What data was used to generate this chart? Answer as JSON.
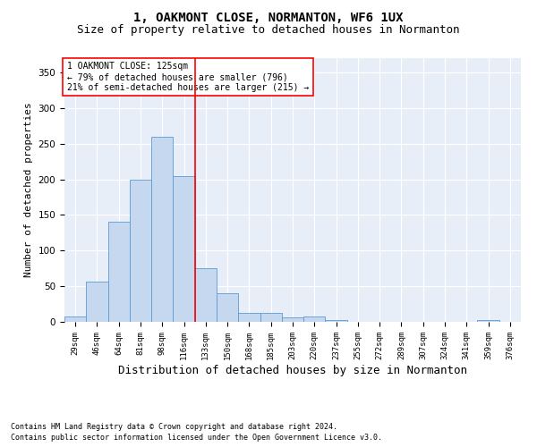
{
  "title": "1, OAKMONT CLOSE, NORMANTON, WF6 1UX",
  "subtitle": "Size of property relative to detached houses in Normanton",
  "xlabel": "Distribution of detached houses by size in Normanton",
  "ylabel": "Number of detached properties",
  "bar_labels": [
    "29sqm",
    "46sqm",
    "64sqm",
    "81sqm",
    "98sqm",
    "116sqm",
    "133sqm",
    "150sqm",
    "168sqm",
    "185sqm",
    "203sqm",
    "220sqm",
    "237sqm",
    "255sqm",
    "272sqm",
    "289sqm",
    "307sqm",
    "324sqm",
    "341sqm",
    "359sqm",
    "376sqm"
  ],
  "bar_values": [
    8,
    57,
    141,
    199,
    259,
    204,
    75,
    40,
    12,
    13,
    6,
    7,
    3,
    0,
    0,
    0,
    0,
    0,
    0,
    3,
    0
  ],
  "bar_color": "#c5d8f0",
  "bar_edge_color": "#5b9bd5",
  "vline_x": 5.5,
  "vline_color": "red",
  "annotation_title": "1 OAKMONT CLOSE: 125sqm",
  "annotation_line2": "← 79% of detached houses are smaller (796)",
  "annotation_line3": "21% of semi-detached houses are larger (215) →",
  "annotation_box_color": "white",
  "annotation_box_edge_color": "red",
  "ylim": [
    0,
    370
  ],
  "yticks": [
    0,
    50,
    100,
    150,
    200,
    250,
    300,
    350
  ],
  "footnote1": "Contains HM Land Registry data © Crown copyright and database right 2024.",
  "footnote2": "Contains public sector information licensed under the Open Government Licence v3.0.",
  "plot_bg_color": "#e8eef8",
  "title_fontsize": 10,
  "subtitle_fontsize": 9,
  "xlabel_fontsize": 9,
  "ylabel_fontsize": 8
}
